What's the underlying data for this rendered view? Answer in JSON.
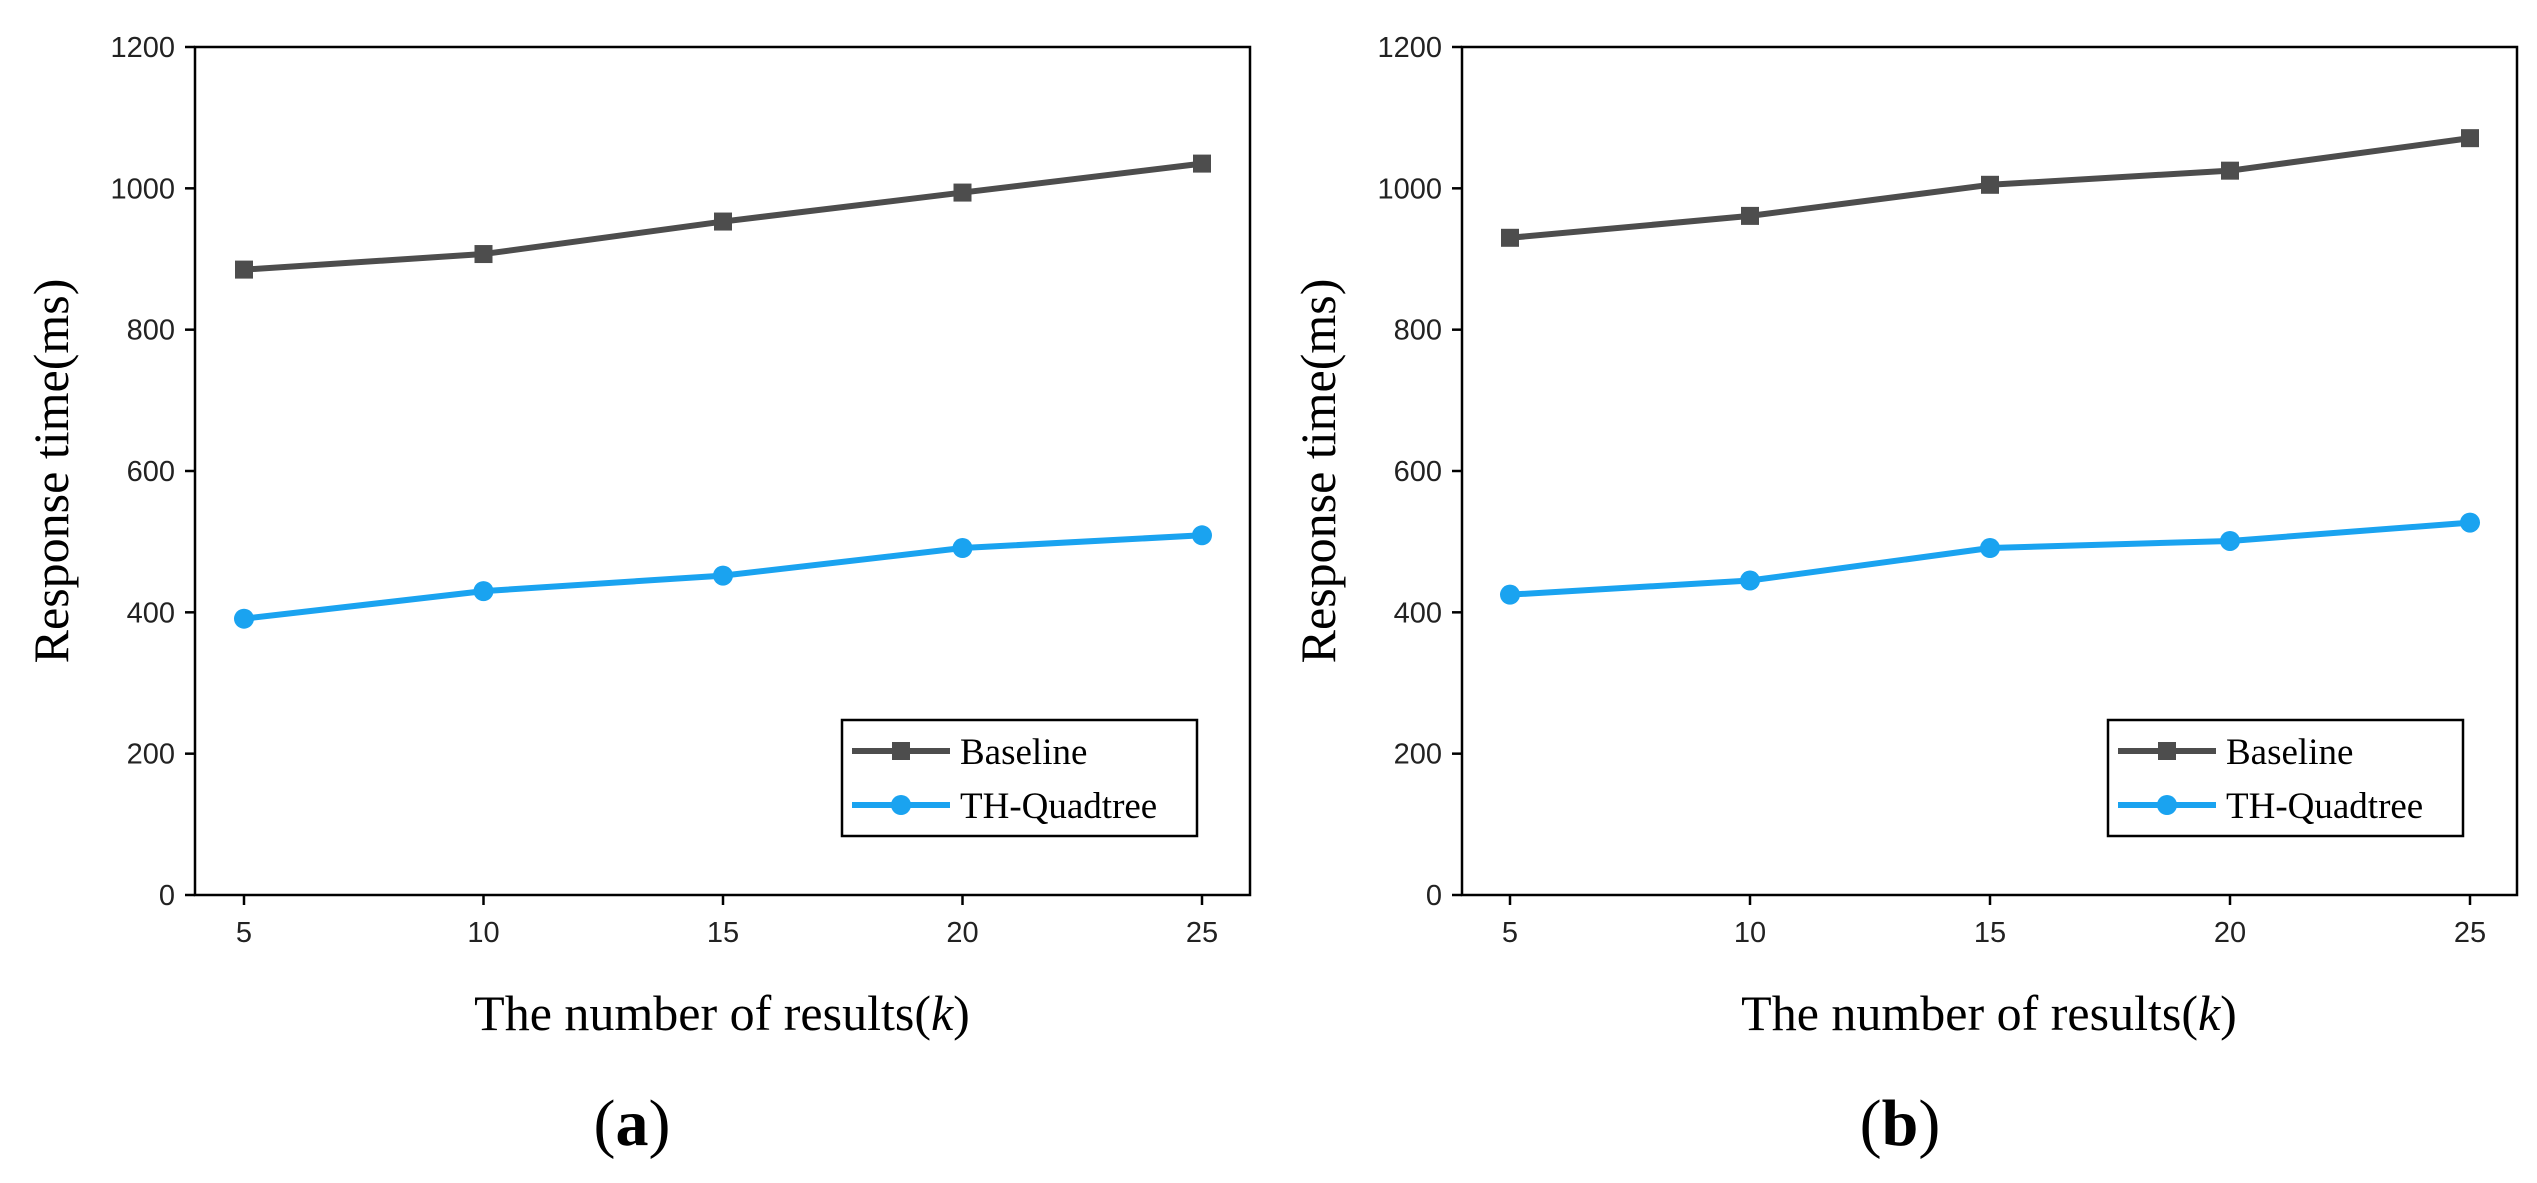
{
  "chart_data": [
    {
      "type": "line",
      "panel_label": "a",
      "xlabel": "The number of results(k)",
      "xlabel_prefix": "The number of results(",
      "xlabel_var": "k",
      "xlabel_suffix": ")",
      "ylabel": "Response time(ms)",
      "x": [
        5,
        10,
        15,
        20,
        25
      ],
      "xticks": [
        "5",
        "10",
        "15",
        "20",
        "25"
      ],
      "ylim": [
        0,
        1200
      ],
      "yticks": [
        "0",
        "200",
        "400",
        "600",
        "800",
        "1000",
        "1200"
      ],
      "legend_position": "bottom-right",
      "series": [
        {
          "name": "Baseline",
          "marker": "square",
          "color": "#4d4d4d",
          "values": [
            885,
            907,
            953,
            994,
            1035
          ]
        },
        {
          "name": "TH-Quadtree",
          "marker": "circle",
          "color": "#1aa3f0",
          "values": [
            391,
            430,
            452,
            491,
            509
          ]
        }
      ]
    },
    {
      "type": "line",
      "panel_label": "b",
      "xlabel": "The number of results(k)",
      "xlabel_prefix": "The number of results(",
      "xlabel_var": "k",
      "xlabel_suffix": ")",
      "ylabel": "Response time(ms)",
      "x": [
        5,
        10,
        15,
        20,
        25
      ],
      "xticks": [
        "5",
        "10",
        "15",
        "20",
        "25"
      ],
      "ylim": [
        0,
        1200
      ],
      "yticks": [
        "0",
        "200",
        "400",
        "600",
        "800",
        "1000",
        "1200"
      ],
      "legend_position": "bottom-right",
      "series": [
        {
          "name": "Baseline",
          "marker": "square",
          "color": "#4d4d4d",
          "values": [
            930,
            961,
            1005,
            1025,
            1071
          ]
        },
        {
          "name": "TH-Quadtree",
          "marker": "circle",
          "color": "#1aa3f0",
          "values": [
            425,
            445,
            491,
            501,
            527
          ]
        }
      ]
    }
  ]
}
